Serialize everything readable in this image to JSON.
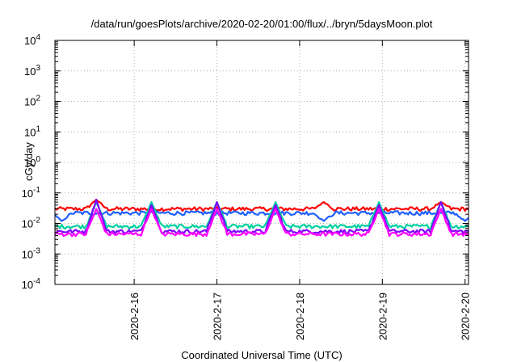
{
  "chart_data": {
    "type": "line",
    "title": "/data/run/goesPlots/archive/2020-02-20/01:00/flux/../bryn/5daysMoon.plot",
    "xlabel": "Coordinated Universal Time (UTC)",
    "ylabel": "cGy/day",
    "x_range": [
      "2020-02-15 01:00",
      "2020-02-20 01:00"
    ],
    "x_ticks": [
      "2020-2-16",
      "2020-2-17",
      "2020-2-18",
      "2020-2-19",
      "2020-2-20"
    ],
    "y_scale": "log",
    "ylim": [
      0.0001,
      10000
    ],
    "y_ticks": [
      {
        "base": "10",
        "exp": "-4"
      },
      {
        "base": "10",
        "exp": "-3"
      },
      {
        "base": "10",
        "exp": "-2"
      },
      {
        "base": "10",
        "exp": "-1"
      },
      {
        "base": "10",
        "exp": "0"
      },
      {
        "base": "10",
        "exp": "1"
      },
      {
        "base": "10",
        "exp": "2"
      },
      {
        "base": "10",
        "exp": "3"
      },
      {
        "base": "10",
        "exp": "4"
      }
    ],
    "grid": true,
    "series": [
      {
        "color": "#ff0000",
        "base": 0.03,
        "spikes": [
          {
            "x": "2020-02-15 13:00",
            "y": 0.06
          },
          {
            "x": "2020-02-18 07:00",
            "y": 0.05
          },
          {
            "x": "2020-02-19 17:00",
            "y": 0.05
          }
        ]
      },
      {
        "color": "#1f5fff",
        "base": 0.022,
        "spikes": [
          {
            "x": "2020-02-15 03:00",
            "y": 0.012
          },
          {
            "x": "2020-02-18 07:00",
            "y": 0.012
          },
          {
            "x": "2020-02-20 00:00",
            "y": 0.012
          }
        ]
      },
      {
        "color": "#00d0a0",
        "base": 0.008,
        "spikes": [
          {
            "x": "2020-02-15 13:00",
            "y": 0.05
          },
          {
            "x": "2020-02-16 05:00",
            "y": 0.05
          },
          {
            "x": "2020-02-17 00:00",
            "y": 0.05
          },
          {
            "x": "2020-02-17 17:00",
            "y": 0.05
          },
          {
            "x": "2020-02-18 23:00",
            "y": 0.05
          },
          {
            "x": "2020-02-19 17:00",
            "y": 0.05
          }
        ]
      },
      {
        "color": "#8000ff",
        "base": 0.0055,
        "spikes": [
          {
            "x": "2020-02-15 13:00",
            "y": 0.06
          },
          {
            "x": "2020-02-16 05:00",
            "y": 0.04
          },
          {
            "x": "2020-02-17 00:00",
            "y": 0.05
          },
          {
            "x": "2020-02-17 17:00",
            "y": 0.04
          },
          {
            "x": "2020-02-18 23:00",
            "y": 0.04
          },
          {
            "x": "2020-02-19 17:00",
            "y": 0.05
          }
        ]
      },
      {
        "color": "#ff00ff",
        "base": 0.0045,
        "spikes": [
          {
            "x": "2020-02-15 13:00",
            "y": 0.03
          },
          {
            "x": "2020-02-16 05:00",
            "y": 0.03
          },
          {
            "x": "2020-02-17 00:00",
            "y": 0.03
          },
          {
            "x": "2020-02-17 17:00",
            "y": 0.03
          },
          {
            "x": "2020-02-18 23:00",
            "y": 0.03
          },
          {
            "x": "2020-02-19 17:00",
            "y": 0.03
          }
        ]
      }
    ]
  }
}
